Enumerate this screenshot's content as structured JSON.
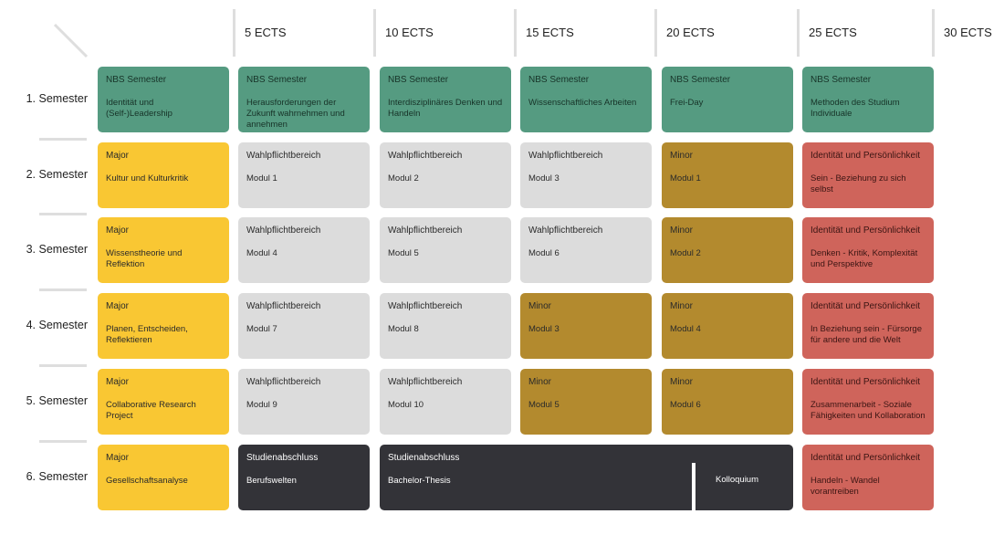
{
  "header": {
    "columns": [
      "5 ECTS",
      "10 ECTS",
      "15 ECTS",
      "20 ECTS",
      "25 ECTS",
      "30 ECTS"
    ]
  },
  "rows": [
    {
      "label": "1. Semester",
      "cells": [
        {
          "title": "NBS Semester",
          "text": "Identität und (Self-)Leadership",
          "color": "#559b81"
        },
        {
          "title": "NBS Semester",
          "text": "Herausforderungen der Zukunft wahrnehmen und annehmen",
          "color": "#559b81"
        },
        {
          "title": "NBS Semester",
          "text": "Interdisziplinäres Denken und Handeln",
          "color": "#559b81"
        },
        {
          "title": "NBS Semester",
          "text": "Wissenschaftliches Arbeiten",
          "color": "#559b81"
        },
        {
          "title": "NBS Semester",
          "text": "Frei-Day",
          "color": "#559b81"
        },
        {
          "title": "NBS Semester",
          "text": "Methoden des Studium Individuale",
          "color": "#559b81"
        }
      ]
    },
    {
      "label": "2. Semester",
      "cells": [
        {
          "title": "Major",
          "text": "Kultur und Kulturkritik",
          "color": "#f9c733"
        },
        {
          "title": "Wahlpflichtbereich",
          "text": "Modul 1",
          "color": "#dcdcdc"
        },
        {
          "title": "Wahlpflichtbereich",
          "text": "Modul 2",
          "color": "#dcdcdc"
        },
        {
          "title": "Wahlpflichtbereich",
          "text": "Modul 3",
          "color": "#dcdcdc"
        },
        {
          "title": "Minor",
          "text": "Modul 1",
          "color": "#b38a2e"
        },
        {
          "title": "Identität und Persönlichkeit",
          "text": "Sein - Beziehung zu sich selbst",
          "color": "#cf645b"
        }
      ]
    },
    {
      "label": "3. Semester",
      "cells": [
        {
          "title": "Major",
          "text": "Wissenstheorie und Reflektion",
          "color": "#f9c733"
        },
        {
          "title": "Wahlpflichtbereich",
          "text": "Modul 4",
          "color": "#dcdcdc"
        },
        {
          "title": "Wahlpflichtbereich",
          "text": "Modul 5",
          "color": "#dcdcdc"
        },
        {
          "title": "Wahlpflichtbereich",
          "text": "Modul 6",
          "color": "#dcdcdc"
        },
        {
          "title": "Minor",
          "text": "Modul 2",
          "color": "#b38a2e"
        },
        {
          "title": "Identität und Persönlichkeit",
          "text": "Denken - Kritik, Komplexität und Perspektive",
          "color": "#cf645b"
        }
      ]
    },
    {
      "label": "4. Semester",
      "cells": [
        {
          "title": "Major",
          "text": "Planen, Entscheiden, Reflektieren",
          "color": "#f9c733"
        },
        {
          "title": "Wahlpflichtbereich",
          "text": "Modul 7",
          "color": "#dcdcdc"
        },
        {
          "title": "Wahlpflichtbereich",
          "text": "Modul 8",
          "color": "#dcdcdc"
        },
        {
          "title": "Minor",
          "text": "Modul 3",
          "color": "#b38a2e"
        },
        {
          "title": "Minor",
          "text": "Modul 4",
          "color": "#b38a2e"
        },
        {
          "title": "Identität und Persönlichkeit",
          "text": "In Beziehung sein - Fürsorge für andere und die Welt",
          "color": "#cf645b"
        }
      ]
    },
    {
      "label": "5. Semester",
      "cells": [
        {
          "title": "Major",
          "text": "Collaborative Research Project",
          "color": "#f9c733"
        },
        {
          "title": "Wahlpflichtbereich",
          "text": "Modul 9",
          "color": "#dcdcdc"
        },
        {
          "title": "Wahlpflichtbereich",
          "text": "Modul 10",
          "color": "#dcdcdc"
        },
        {
          "title": "Minor",
          "text": "Modul 5",
          "color": "#b38a2e"
        },
        {
          "title": "Minor",
          "text": "Modul 6",
          "color": "#b38a2e"
        },
        {
          "title": "Identität und Persönlichkeit",
          "text": "Zusammenarbeit - Soziale Fähigkeiten und Kollaboration",
          "color": "#cf645b"
        }
      ]
    },
    {
      "label": "6. Semester",
      "cells": [
        {
          "title": "Major",
          "text": "Gesellschaftsanalyse",
          "color": "#f9c733"
        },
        {
          "title": "Studienabschluss",
          "text": "Berufswelten",
          "color": "#333338"
        },
        {
          "title": "Studienabschluss",
          "text": "Bachelor-Thesis",
          "extra": "Kolloquium",
          "color": "#333338"
        },
        {
          "title": "Identität und Persönlichkeit",
          "text": "Handeln - Wandel vorantreiben",
          "color": "#cf645b"
        }
      ]
    }
  ]
}
